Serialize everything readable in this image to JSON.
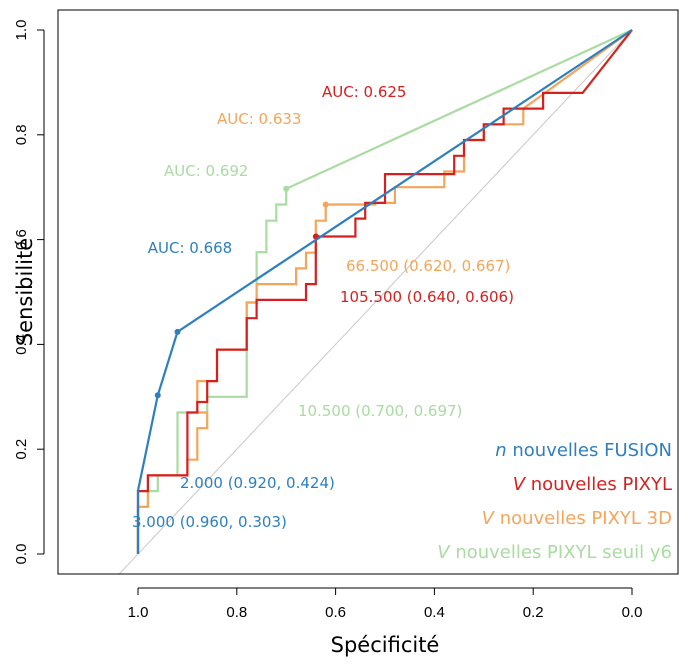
{
  "chart_data": {
    "type": "line",
    "title": "",
    "xlabel": "Spécificité",
    "ylabel": "Sensibilité",
    "xlim": [
      1.0,
      0.0
    ],
    "x_reversed": true,
    "ylim": [
      0.0,
      1.0
    ],
    "x_ticks": [
      "1.0",
      "0.8",
      "0.6",
      "0.4",
      "0.2",
      "0.0"
    ],
    "y_ticks": [
      "0.0",
      "0.2",
      "0.4",
      "0.6",
      "0.8",
      "1.0"
    ],
    "grid": false,
    "diagonal": true,
    "legend_position": "bottom-right",
    "series": [
      {
        "name": "nouvelles FUSION",
        "legend_prefix": "n",
        "color": "#2e7fbf",
        "style": "line",
        "auc": "AUC: 0.668",
        "points": [
          [
            1.0,
            0.0
          ],
          [
            1.0,
            0.121
          ],
          [
            0.96,
            0.303
          ],
          [
            0.92,
            0.424
          ],
          [
            0.0,
            1.0
          ]
        ],
        "markers": [
          [
            0.96,
            0.303
          ],
          [
            0.92,
            0.424
          ]
        ],
        "thresholds": [
          "3.000 (0.960, 0.303)",
          "2.000 (0.920, 0.424)"
        ]
      },
      {
        "name": "nouvelles PIXYL",
        "legend_prefix": "V",
        "color": "#d62020",
        "style": "step",
        "auc": "AUC: 0.625",
        "points": [
          [
            1.0,
            0.0
          ],
          [
            1.0,
            0.12
          ],
          [
            0.98,
            0.12
          ],
          [
            0.98,
            0.15
          ],
          [
            0.9,
            0.15
          ],
          [
            0.9,
            0.27
          ],
          [
            0.88,
            0.27
          ],
          [
            0.88,
            0.29
          ],
          [
            0.86,
            0.29
          ],
          [
            0.86,
            0.33
          ],
          [
            0.84,
            0.33
          ],
          [
            0.84,
            0.39
          ],
          [
            0.78,
            0.39
          ],
          [
            0.78,
            0.45
          ],
          [
            0.76,
            0.45
          ],
          [
            0.76,
            0.485
          ],
          [
            0.66,
            0.485
          ],
          [
            0.66,
            0.515
          ],
          [
            0.64,
            0.515
          ],
          [
            0.64,
            0.606
          ],
          [
            0.56,
            0.606
          ],
          [
            0.56,
            0.64
          ],
          [
            0.54,
            0.64
          ],
          [
            0.54,
            0.67
          ],
          [
            0.5,
            0.67
          ],
          [
            0.5,
            0.725
          ],
          [
            0.36,
            0.725
          ],
          [
            0.36,
            0.76
          ],
          [
            0.34,
            0.76
          ],
          [
            0.34,
            0.79
          ],
          [
            0.3,
            0.79
          ],
          [
            0.3,
            0.82
          ],
          [
            0.26,
            0.82
          ],
          [
            0.26,
            0.85
          ],
          [
            0.18,
            0.85
          ],
          [
            0.18,
            0.88
          ],
          [
            0.1,
            0.88
          ],
          [
            0.0,
            1.0
          ]
        ],
        "markers": [
          [
            0.64,
            0.606
          ]
        ],
        "thresholds": [
          "105.500 (0.640, 0.606)"
        ]
      },
      {
        "name": "nouvelles PIXYL 3D",
        "legend_prefix": "V",
        "color": "#f5a55a",
        "style": "step",
        "auc": "AUC: 0.633",
        "points": [
          [
            1.0,
            0.0
          ],
          [
            1.0,
            0.09
          ],
          [
            0.98,
            0.09
          ],
          [
            0.98,
            0.15
          ],
          [
            0.9,
            0.15
          ],
          [
            0.9,
            0.18
          ],
          [
            0.88,
            0.18
          ],
          [
            0.88,
            0.24
          ],
          [
            0.86,
            0.24
          ],
          [
            0.86,
            0.27
          ],
          [
            0.88,
            0.27
          ],
          [
            0.88,
            0.33
          ],
          [
            0.84,
            0.33
          ],
          [
            0.84,
            0.39
          ],
          [
            0.78,
            0.39
          ],
          [
            0.78,
            0.48
          ],
          [
            0.76,
            0.48
          ],
          [
            0.76,
            0.515
          ],
          [
            0.68,
            0.515
          ],
          [
            0.68,
            0.545
          ],
          [
            0.66,
            0.545
          ],
          [
            0.66,
            0.575
          ],
          [
            0.64,
            0.575
          ],
          [
            0.64,
            0.636
          ],
          [
            0.62,
            0.636
          ],
          [
            0.62,
            0.667
          ],
          [
            0.52,
            0.667
          ],
          [
            0.52,
            0.67
          ],
          [
            0.48,
            0.67
          ],
          [
            0.48,
            0.7
          ],
          [
            0.38,
            0.7
          ],
          [
            0.38,
            0.73
          ],
          [
            0.34,
            0.73
          ],
          [
            0.34,
            0.79
          ],
          [
            0.3,
            0.79
          ],
          [
            0.3,
            0.82
          ],
          [
            0.22,
            0.82
          ],
          [
            0.22,
            0.85
          ],
          [
            0.0,
            1.0
          ]
        ],
        "markers": [
          [
            0.62,
            0.667
          ]
        ],
        "thresholds": [
          "66.500 (0.620, 0.667)"
        ]
      },
      {
        "name": "nouvelles PIXYL seuil y6",
        "legend_prefix": "V",
        "color": "#a8dca0",
        "style": "step",
        "auc": "AUC: 0.692",
        "points": [
          [
            1.0,
            0.0
          ],
          [
            1.0,
            0.09
          ],
          [
            0.98,
            0.09
          ],
          [
            0.98,
            0.12
          ],
          [
            0.96,
            0.12
          ],
          [
            0.96,
            0.15
          ],
          [
            0.92,
            0.15
          ],
          [
            0.92,
            0.27
          ],
          [
            0.86,
            0.27
          ],
          [
            0.86,
            0.3
          ],
          [
            0.78,
            0.3
          ],
          [
            0.78,
            0.48
          ],
          [
            0.76,
            0.48
          ],
          [
            0.76,
            0.576
          ],
          [
            0.74,
            0.576
          ],
          [
            0.74,
            0.636
          ],
          [
            0.72,
            0.636
          ],
          [
            0.72,
            0.667
          ],
          [
            0.7,
            0.667
          ],
          [
            0.7,
            0.697
          ],
          [
            0.0,
            1.0
          ]
        ],
        "markers": [
          [
            0.7,
            0.697
          ]
        ],
        "thresholds": [
          "10.500 (0.700, 0.697)"
        ]
      }
    ]
  }
}
